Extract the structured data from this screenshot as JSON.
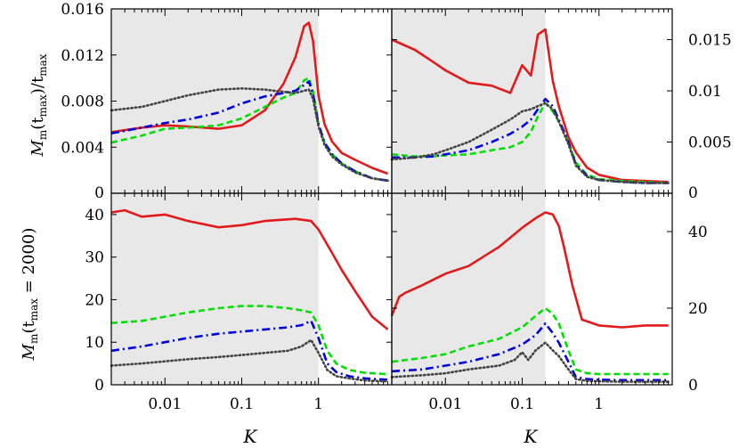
{
  "chart_data": [
    {
      "type": "line",
      "panel": "top-left",
      "x_scale": "log",
      "xlim": [
        0.002,
        9
      ],
      "ylim": [
        0,
        0.016
      ],
      "yticks": [
        "0",
        "0.004",
        "0.008",
        "0.012",
        "0.016"
      ],
      "shaded_region": [
        0.002,
        1
      ],
      "series": [
        {
          "color": "#e31a1c",
          "style": "solid",
          "x": [
            0.002,
            0.005,
            0.01,
            0.02,
            0.05,
            0.1,
            0.2,
            0.35,
            0.5,
            0.65,
            0.75,
            0.85,
            1.0,
            1.2,
            1.5,
            2,
            3,
            5,
            8
          ],
          "y": [
            0.0053,
            0.0057,
            0.0059,
            0.0058,
            0.0056,
            0.0059,
            0.0072,
            0.0095,
            0.0118,
            0.0145,
            0.0148,
            0.0132,
            0.0085,
            0.006,
            0.0045,
            0.0035,
            0.0029,
            0.0022,
            0.0017
          ]
        },
        {
          "color": "#00e000",
          "style": "dashed",
          "x": [
            0.002,
            0.005,
            0.01,
            0.02,
            0.05,
            0.1,
            0.2,
            0.35,
            0.5,
            0.65,
            0.75,
            0.85,
            1.0,
            1.2,
            1.5,
            2,
            3,
            5,
            8
          ],
          "y": [
            0.0044,
            0.005,
            0.0056,
            0.0057,
            0.0059,
            0.0065,
            0.0075,
            0.0083,
            0.0087,
            0.0098,
            0.01,
            0.0088,
            0.006,
            0.0044,
            0.0034,
            0.0026,
            0.0019,
            0.0013,
            0.0011
          ]
        },
        {
          "color": "#0000e0",
          "style": "dashdot",
          "x": [
            0.002,
            0.005,
            0.01,
            0.02,
            0.05,
            0.1,
            0.2,
            0.35,
            0.5,
            0.65,
            0.75,
            0.85,
            1.0,
            1.2,
            1.5,
            2,
            3,
            5,
            8
          ],
          "y": [
            0.0052,
            0.0057,
            0.0061,
            0.0064,
            0.007,
            0.0078,
            0.0084,
            0.0087,
            0.0089,
            0.0094,
            0.0097,
            0.0086,
            0.006,
            0.0044,
            0.0034,
            0.0026,
            0.0019,
            0.0013,
            0.0011
          ]
        },
        {
          "color": "#444444",
          "style": "dotted",
          "x": [
            0.002,
            0.005,
            0.01,
            0.02,
            0.05,
            0.1,
            0.2,
            0.35,
            0.5,
            0.65,
            0.75,
            0.85,
            1.0,
            1.2,
            1.5,
            2,
            3,
            5,
            8
          ],
          "y": [
            0.0072,
            0.0075,
            0.008,
            0.0085,
            0.009,
            0.0091,
            0.009,
            0.0088,
            0.0087,
            0.0089,
            0.009,
            0.0082,
            0.0058,
            0.0042,
            0.0032,
            0.0025,
            0.0018,
            0.0013,
            0.0011
          ]
        }
      ]
    },
    {
      "type": "line",
      "panel": "top-right",
      "x_scale": "log",
      "xlim": [
        0.002,
        9
      ],
      "ylim": [
        0,
        0.018
      ],
      "yticks": [
        "0",
        "0.005",
        "0.01",
        "0.015"
      ],
      "shaded_region": [
        0.002,
        0.2
      ],
      "series": [
        {
          "color": "#e31a1c",
          "style": "solid",
          "x": [
            0.002,
            0.004,
            0.007,
            0.01,
            0.02,
            0.04,
            0.07,
            0.1,
            0.13,
            0.16,
            0.2,
            0.25,
            0.3,
            0.4,
            0.5,
            0.7,
            1,
            2,
            4,
            8
          ],
          "y": [
            0.015,
            0.014,
            0.0128,
            0.012,
            0.0108,
            0.0105,
            0.0098,
            0.0125,
            0.0115,
            0.0155,
            0.016,
            0.011,
            0.0085,
            0.0055,
            0.004,
            0.0025,
            0.0018,
            0.0013,
            0.0012,
            0.0011
          ]
        },
        {
          "color": "#00e000",
          "style": "dashed",
          "x": [
            0.002,
            0.004,
            0.007,
            0.01,
            0.02,
            0.04,
            0.07,
            0.1,
            0.13,
            0.16,
            0.2,
            0.25,
            0.3,
            0.4,
            0.5,
            0.7,
            1,
            2,
            4,
            8
          ],
          "y": [
            0.0038,
            0.0036,
            0.0036,
            0.0037,
            0.0038,
            0.0042,
            0.0045,
            0.005,
            0.006,
            0.0075,
            0.0088,
            0.008,
            0.007,
            0.005,
            0.003,
            0.0018,
            0.0014,
            0.0012,
            0.0011,
            0.001
          ]
        },
        {
          "color": "#0000e0",
          "style": "dashdot",
          "x": [
            0.002,
            0.004,
            0.007,
            0.01,
            0.02,
            0.04,
            0.07,
            0.1,
            0.13,
            0.16,
            0.2,
            0.25,
            0.3,
            0.4,
            0.5,
            0.7,
            1,
            2,
            4,
            8
          ],
          "y": [
            0.0035,
            0.0035,
            0.0036,
            0.0038,
            0.0042,
            0.005,
            0.0058,
            0.0065,
            0.0072,
            0.0082,
            0.0092,
            0.0085,
            0.0072,
            0.005,
            0.0028,
            0.0017,
            0.0013,
            0.0011,
            0.001,
            0.001
          ]
        },
        {
          "color": "#444444",
          "style": "dotted",
          "x": [
            0.002,
            0.004,
            0.007,
            0.01,
            0.02,
            0.04,
            0.07,
            0.1,
            0.13,
            0.16,
            0.2,
            0.25,
            0.3,
            0.4,
            0.5,
            0.7,
            1,
            2,
            4,
            8
          ],
          "y": [
            0.0033,
            0.0035,
            0.0038,
            0.0042,
            0.005,
            0.0062,
            0.0072,
            0.008,
            0.0082,
            0.0085,
            0.0088,
            0.0082,
            0.007,
            0.0048,
            0.0027,
            0.0016,
            0.0013,
            0.0011,
            0.001,
            0.001
          ]
        }
      ]
    },
    {
      "type": "line",
      "panel": "bottom-left",
      "x_scale": "log",
      "xlim": [
        0.002,
        9
      ],
      "ylim": [
        0,
        45
      ],
      "yticks": [
        "0",
        "10",
        "20",
        "30",
        "40"
      ],
      "xticks": [
        "0.01",
        "0.1",
        "1"
      ],
      "xlabel": "K",
      "shaded_region": [
        0.002,
        1
      ],
      "series": [
        {
          "color": "#e31a1c",
          "style": "solid",
          "x": [
            0.002,
            0.003,
            0.005,
            0.01,
            0.02,
            0.05,
            0.1,
            0.2,
            0.5,
            0.8,
            1.0,
            1.5,
            2,
            3,
            5,
            8
          ],
          "y": [
            40.5,
            41.0,
            39.5,
            40.0,
            38.5,
            37.0,
            37.5,
            38.5,
            39.0,
            38.5,
            36.5,
            31.0,
            27.0,
            22.0,
            16.0,
            13.0
          ]
        },
        {
          "color": "#00e000",
          "style": "dashed",
          "x": [
            0.002,
            0.005,
            0.01,
            0.02,
            0.05,
            0.1,
            0.2,
            0.4,
            0.6,
            0.8,
            1.0,
            1.3,
            1.7,
            2.5,
            4,
            8
          ],
          "y": [
            14.5,
            15.0,
            16.0,
            17.0,
            18.0,
            18.5,
            18.5,
            18.0,
            17.5,
            17.0,
            14.0,
            8.0,
            5.0,
            3.5,
            2.8,
            2.5
          ]
        },
        {
          "color": "#0000e0",
          "style": "dashdot",
          "x": [
            0.002,
            0.005,
            0.01,
            0.02,
            0.05,
            0.1,
            0.2,
            0.4,
            0.6,
            0.8,
            1.0,
            1.3,
            1.7,
            2.5,
            4,
            8
          ],
          "y": [
            8.0,
            9.0,
            10.0,
            11.0,
            12.0,
            12.5,
            13.0,
            13.5,
            14.0,
            15.0,
            11.0,
            5.0,
            3.0,
            2.0,
            1.5,
            1.2
          ]
        },
        {
          "color": "#444444",
          "style": "dotted",
          "x": [
            0.002,
            0.005,
            0.01,
            0.02,
            0.05,
            0.1,
            0.2,
            0.4,
            0.6,
            0.8,
            1.0,
            1.3,
            1.7,
            2.5,
            4,
            8
          ],
          "y": [
            4.5,
            5.0,
            5.5,
            6.0,
            6.5,
            7.0,
            7.5,
            8.0,
            9.0,
            10.5,
            7.5,
            3.5,
            2.0,
            1.5,
            1.0,
            0.8
          ]
        }
      ]
    },
    {
      "type": "line",
      "panel": "bottom-right",
      "x_scale": "log",
      "xlim": [
        0.002,
        9
      ],
      "ylim": [
        0,
        50
      ],
      "yticks": [
        "0",
        "20",
        "40"
      ],
      "xticks": [
        "0.01",
        "0.1",
        "1"
      ],
      "xlabel": "K",
      "shaded_region": [
        0.002,
        0.2
      ],
      "series": [
        {
          "color": "#e31a1c",
          "style": "solid",
          "x": [
            0.002,
            0.0025,
            0.003,
            0.005,
            0.01,
            0.02,
            0.05,
            0.1,
            0.15,
            0.2,
            0.25,
            0.3,
            0.35,
            0.45,
            0.6,
            1,
            2,
            4,
            8
          ],
          "y": [
            18.0,
            23.0,
            24.0,
            26.0,
            29.0,
            31.0,
            36.0,
            41.0,
            43.5,
            45.0,
            44.5,
            41.5,
            36.0,
            26.0,
            17.0,
            15.5,
            15.0,
            15.5,
            15.5
          ]
        },
        {
          "color": "#00e000",
          "style": "dashed",
          "x": [
            0.002,
            0.005,
            0.01,
            0.02,
            0.05,
            0.1,
            0.15,
            0.2,
            0.25,
            0.3,
            0.4,
            0.5,
            0.7,
            1,
            2,
            4,
            8
          ],
          "y": [
            6.0,
            7.0,
            8.0,
            10.0,
            12.0,
            15.0,
            18.0,
            20.0,
            18.5,
            16.0,
            9.0,
            4.0,
            3.0,
            2.8,
            2.8,
            2.8,
            2.8
          ]
        },
        {
          "color": "#0000e0",
          "style": "dashdot",
          "x": [
            0.002,
            0.005,
            0.01,
            0.02,
            0.05,
            0.1,
            0.15,
            0.2,
            0.25,
            0.3,
            0.4,
            0.5,
            0.7,
            1,
            2,
            4,
            8
          ],
          "y": [
            3.5,
            4.0,
            5.0,
            6.0,
            8.0,
            10.5,
            13.0,
            16.0,
            13.5,
            11.0,
            6.0,
            2.0,
            1.5,
            1.3,
            1.2,
            1.2,
            1.2
          ]
        },
        {
          "color": "#444444",
          "style": "dotted",
          "x": [
            0.002,
            0.005,
            0.01,
            0.02,
            0.05,
            0.08,
            0.1,
            0.12,
            0.15,
            0.2,
            0.25,
            0.3,
            0.4,
            0.5,
            0.7,
            1,
            2,
            4,
            8
          ],
          "y": [
            2.0,
            2.5,
            3.0,
            4.0,
            5.0,
            6.5,
            8.5,
            6.5,
            9.0,
            11.0,
            9.0,
            7.5,
            4.0,
            1.5,
            1.0,
            0.9,
            0.8,
            0.8,
            0.8
          ]
        }
      ]
    }
  ],
  "labels": {
    "top_ylabel_main": "M",
    "top_ylabel_sub": "m",
    "top_ylabel_arg": "(t",
    "top_ylabel_argsub": "max",
    "top_ylabel_rest": ")/t",
    "top_ylabel_restsub": "max",
    "bottom_ylabel_main": "M",
    "bottom_ylabel_sub": "m",
    "bottom_ylabel_arg": "(t",
    "bottom_ylabel_argsub": "max",
    "bottom_ylabel_rest": " = 2000)",
    "xlabel_left": "K",
    "xlabel_right": "K"
  }
}
